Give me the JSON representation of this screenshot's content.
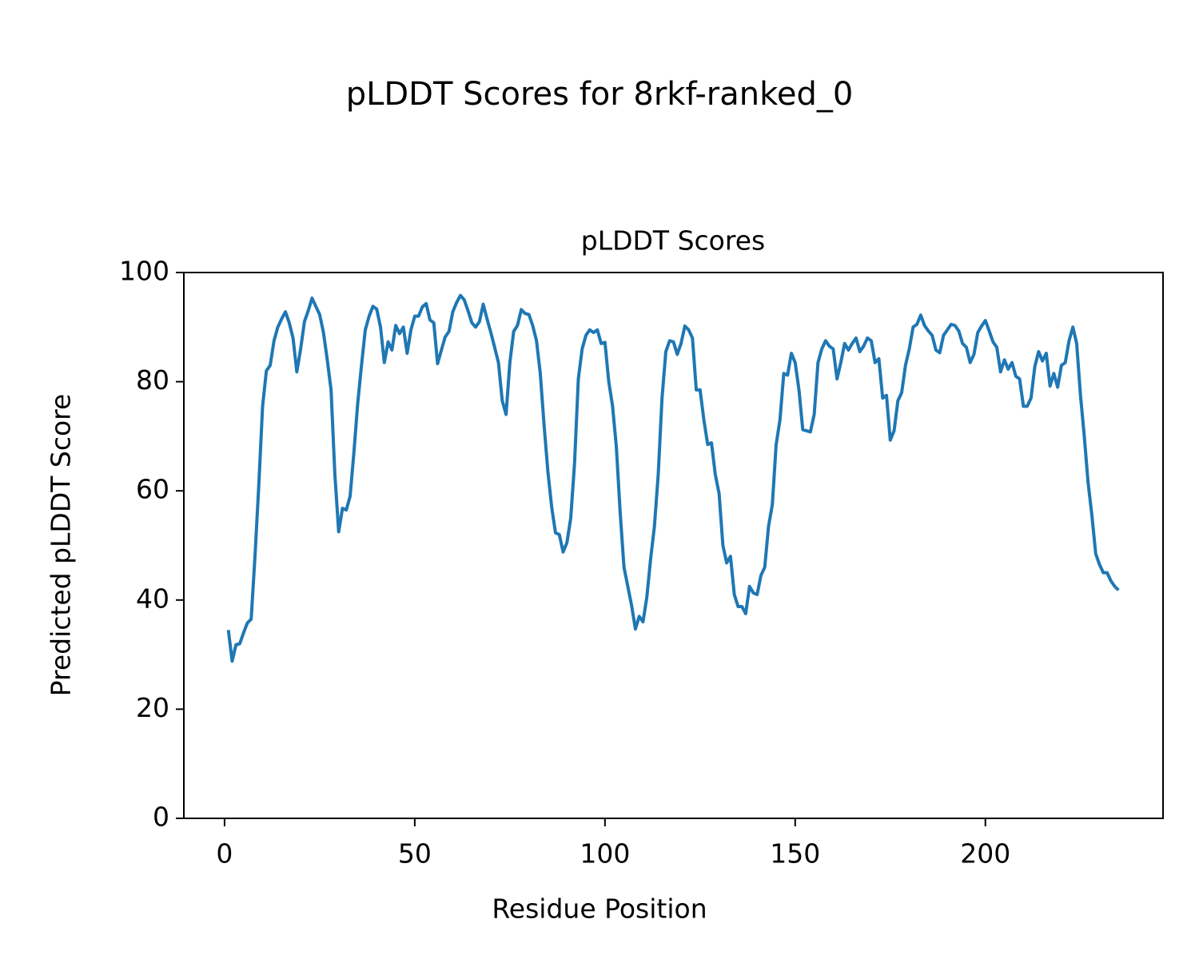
{
  "chart_data": {
    "type": "line",
    "title": "pLDDT Scores for 8rkf-ranked_0",
    "subtitle": "pLDDT Scores",
    "xlabel": "Residue Position",
    "ylabel": "Predicted pLDDT Score",
    "xlim": [
      -10.7,
      246.7
    ],
    "xticks": [
      0,
      50,
      100,
      150,
      200
    ],
    "ylim": [
      0,
      100
    ],
    "yticks": [
      0,
      20,
      40,
      60,
      80,
      100
    ],
    "grid": false,
    "x": [
      1,
      2,
      3,
      4,
      5,
      6,
      7,
      8,
      9,
      10,
      11,
      12,
      13,
      14,
      15,
      16,
      17,
      18,
      19,
      20,
      21,
      22,
      23,
      24,
      25,
      26,
      27,
      28,
      29,
      30,
      31,
      32,
      33,
      34,
      35,
      36,
      37,
      38,
      39,
      40,
      41,
      42,
      43,
      44,
      45,
      46,
      47,
      48,
      49,
      50,
      51,
      52,
      53,
      54,
      55,
      56,
      57,
      58,
      59,
      60,
      61,
      62,
      63,
      64,
      65,
      66,
      67,
      68,
      69,
      70,
      71,
      72,
      73,
      74,
      75,
      76,
      77,
      78,
      79,
      80,
      81,
      82,
      83,
      84,
      85,
      86,
      87,
      88,
      89,
      90,
      91,
      92,
      93,
      94,
      95,
      96,
      97,
      98,
      99,
      100,
      101,
      102,
      103,
      104,
      105,
      106,
      107,
      108,
      109,
      110,
      111,
      112,
      113,
      114,
      115,
      116,
      117,
      118,
      119,
      120,
      121,
      122,
      123,
      124,
      125,
      126,
      127,
      128,
      129,
      130,
      131,
      132,
      133,
      134,
      135,
      136,
      137,
      138,
      139,
      140,
      141,
      142,
      143,
      144,
      145,
      146,
      147,
      148,
      149,
      150,
      151,
      152,
      153,
      154,
      155,
      156,
      157,
      158,
      159,
      160,
      161,
      162,
      163,
      164,
      165,
      166,
      167,
      168,
      169,
      170,
      171,
      172,
      173,
      174,
      175,
      176,
      177,
      178,
      179,
      180,
      181,
      182,
      183,
      184,
      185,
      186,
      187,
      188,
      189,
      190,
      191,
      192,
      193,
      194,
      195,
      196,
      197,
      198,
      199,
      200,
      201,
      202,
      203,
      204,
      205,
      206,
      207,
      208,
      209,
      210,
      211,
      212,
      213,
      214,
      215,
      216,
      217,
      218,
      219,
      220,
      221,
      222,
      223,
      224,
      225,
      226,
      227,
      228,
      229,
      230,
      231,
      232,
      233,
      234,
      235
    ],
    "series": [
      {
        "name": "pLDDT",
        "color": "#1f77b4",
        "values": [
          34.5,
          28.8,
          31.8,
          32,
          34,
          35.8,
          36.5,
          48,
          61,
          75.5,
          82,
          83,
          87.5,
          90,
          91.5,
          92.8,
          90.8,
          88,
          81.8,
          86,
          91,
          93,
          95.3,
          93.8,
          92.3,
          89,
          84,
          78.5,
          63,
          52.5,
          56.8,
          56.5,
          59,
          67,
          76,
          83,
          89.5,
          92,
          93.8,
          93.3,
          90,
          83.5,
          87.3,
          85.8,
          90.3,
          88.8,
          90,
          85.2,
          89.5,
          92,
          92,
          93.7,
          94.3,
          91.3,
          90.8,
          83.3,
          85.8,
          88.2,
          89.2,
          92.8,
          94.5,
          95.8,
          95,
          93,
          90.8,
          90,
          91,
          94.2,
          91.5,
          89,
          86.3,
          83.5,
          76.5,
          74,
          83.5,
          89.2,
          90.3,
          93.2,
          92.5,
          92.3,
          90.3,
          87.5,
          81.5,
          72,
          63.5,
          57,
          52.3,
          52,
          48.8,
          50.5,
          55,
          65,
          80.5,
          86,
          88.5,
          89.5,
          89,
          89.5,
          87,
          87.2,
          80,
          75.5,
          68,
          56,
          46,
          42.5,
          39,
          34.7,
          37,
          36,
          40.5,
          47.5,
          53.5,
          63,
          77,
          85.5,
          87.5,
          87.3,
          85,
          87,
          90.2,
          89.5,
          88,
          78.5,
          78.5,
          73,
          68.5,
          68.8,
          63,
          59.5,
          50,
          46.8,
          48,
          41,
          38.8,
          38.8,
          37.5,
          42.5,
          41.3,
          41,
          44.5,
          46,
          53.5,
          57.5,
          68.5,
          73,
          81.5,
          81.2,
          85.2,
          83.5,
          78.5,
          71.2,
          71,
          70.8,
          74,
          83.5,
          86,
          87.5,
          86.5,
          86,
          80.5,
          83.5,
          87,
          85.8,
          87,
          88,
          85.5,
          86.5,
          88,
          87.5,
          83.5,
          84.2,
          77,
          77.5,
          69.3,
          71,
          76.5,
          78,
          83,
          86,
          90,
          90.5,
          92.2,
          90.3,
          89.3,
          88.5,
          85.8,
          85.3,
          88.5,
          89.5,
          90.5,
          90.3,
          89.3,
          87,
          86.3,
          83.5,
          85,
          89,
          90.2,
          91.2,
          89.3,
          87.3,
          86.3,
          81.8,
          84,
          82.3,
          83.5,
          81,
          80.5,
          75.5,
          75.5,
          77,
          82.8,
          85.5,
          83.8,
          85.2,
          79.2,
          81.5,
          79,
          83,
          83.5,
          87.5,
          90,
          87,
          77.5,
          70,
          61.5,
          55.5,
          48.5,
          46.5,
          45,
          45,
          43.5,
          42.5,
          41.8
        ]
      }
    ]
  }
}
